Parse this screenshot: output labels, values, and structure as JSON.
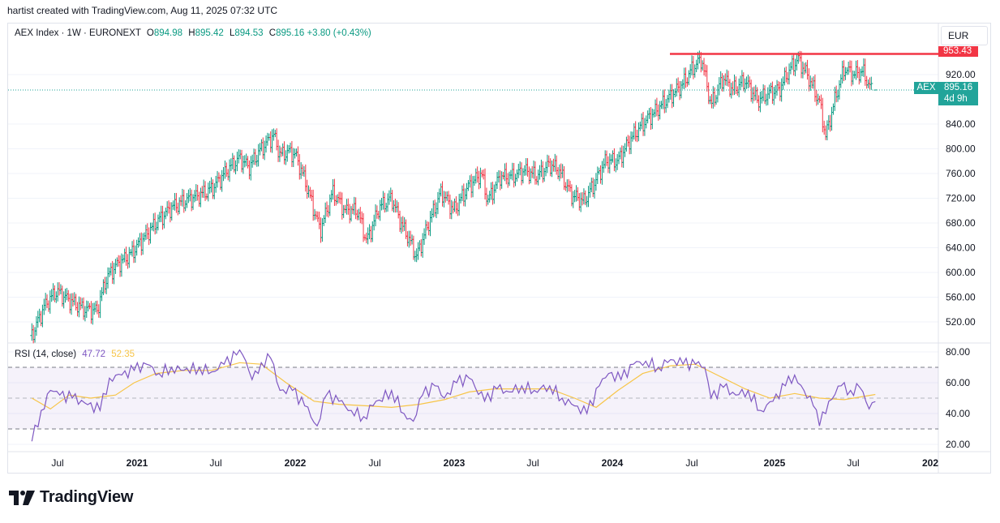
{
  "header": {
    "attribution": "hartist created with TradingView.com, Aug 11, 2025 07:32 UTC"
  },
  "legend": {
    "symbol": "AEX Index · 1W · EURONEXT",
    "open_label": "O",
    "open": "894.98",
    "high_label": "H",
    "high": "895.42",
    "low_label": "L",
    "low": "894.53",
    "close_label": "C",
    "close": "895.16",
    "change": "+3.80 (+0.43%)"
  },
  "rsi_legend": {
    "name": "RSI (14, close)",
    "rsi": "47.72",
    "ma": "52.35"
  },
  "currency_button": "EUR",
  "resistance_tag": "953.43",
  "price_tag": {
    "symbol": "AEX",
    "price": "895.16",
    "countdown": "4d 9h"
  },
  "brand": {
    "name": "TradingView",
    "logo_icon": "tradingview-logo-icon"
  },
  "colors": {
    "up": "#089981",
    "down": "#f23645",
    "rsi": "#7e57c2",
    "rsi_ma": "#f7c548",
    "resistance": "#f23645",
    "last_price": "#22a49a"
  },
  "chart_data": [
    {
      "type": "ohlc",
      "interval": "1W",
      "price_axis_ticks": [
        520,
        560,
        600,
        640,
        680,
        720,
        760,
        800,
        840,
        920
      ],
      "price_axis_tick_labels": [
        "520.00",
        "560.00",
        "600.00",
        "640.00",
        "680.00",
        "720.00",
        "760.00",
        "800.00",
        "840.00",
        "920.00"
      ],
      "time_axis_labels": [
        "Jul",
        "2021",
        "Jul",
        "2022",
        "Jul",
        "2023",
        "Jul",
        "2024",
        "Jul",
        "2025",
        "Jul",
        "202"
      ],
      "resistance_level": 953.43,
      "last_close": 895.16,
      "close_path": [
        [
          "2020-05-25",
          498
        ],
        [
          "2020-06-22",
          545
        ],
        [
          "2020-07-20",
          570
        ],
        [
          "2020-08-17",
          555
        ],
        [
          "2020-09-21",
          540
        ],
        [
          "2020-10-19",
          538
        ],
        [
          "2020-11-09",
          590
        ],
        [
          "2020-11-30",
          610
        ],
        [
          "2021-01-04",
          630
        ],
        [
          "2021-02-01",
          655
        ],
        [
          "2021-03-01",
          680
        ],
        [
          "2021-04-05",
          705
        ],
        [
          "2021-05-03",
          715
        ],
        [
          "2021-06-07",
          725
        ],
        [
          "2021-07-05",
          735
        ],
        [
          "2021-08-09",
          765
        ],
        [
          "2021-09-06",
          785
        ],
        [
          "2021-09-27",
          770
        ],
        [
          "2021-10-25",
          800
        ],
        [
          "2021-11-22",
          822
        ],
        [
          "2021-12-06",
          790
        ],
        [
          "2021-12-27",
          795
        ],
        [
          "2022-01-10",
          790
        ],
        [
          "2022-01-31",
          750
        ],
        [
          "2022-02-21",
          700
        ],
        [
          "2022-03-07",
          668
        ],
        [
          "2022-04-04",
          730
        ],
        [
          "2022-05-02",
          700
        ],
        [
          "2022-05-30",
          700
        ],
        [
          "2022-06-20",
          650
        ],
        [
          "2022-07-18",
          705
        ],
        [
          "2022-08-15",
          720
        ],
        [
          "2022-09-05",
          680
        ],
        [
          "2022-09-26",
          650
        ],
        [
          "2022-10-10",
          625
        ],
        [
          "2022-11-07",
          680
        ],
        [
          "2022-12-05",
          730
        ],
        [
          "2023-01-02",
          700
        ],
        [
          "2023-02-06",
          740
        ],
        [
          "2023-03-06",
          760
        ],
        [
          "2023-03-20",
          715
        ],
        [
          "2023-04-17",
          755
        ],
        [
          "2023-05-15",
          755
        ],
        [
          "2023-06-12",
          765
        ],
        [
          "2023-07-10",
          755
        ],
        [
          "2023-08-07",
          775
        ],
        [
          "2023-08-28",
          765
        ],
        [
          "2023-09-25",
          725
        ],
        [
          "2023-10-23",
          715
        ],
        [
          "2023-11-13",
          740
        ],
        [
          "2023-12-11",
          780
        ],
        [
          "2024-01-08",
          780
        ],
        [
          "2024-02-05",
          815
        ],
        [
          "2024-03-04",
          840
        ],
        [
          "2024-04-01",
          860
        ],
        [
          "2024-05-06",
          885
        ],
        [
          "2024-06-03",
          905
        ],
        [
          "2024-06-24",
          930
        ],
        [
          "2024-07-15",
          945
        ],
        [
          "2024-08-05",
          870
        ],
        [
          "2024-09-02",
          915
        ],
        [
          "2024-09-23",
          895
        ],
        [
          "2024-10-21",
          910
        ],
        [
          "2024-11-18",
          878
        ],
        [
          "2024-12-16",
          890
        ],
        [
          "2025-01-06",
          895
        ],
        [
          "2025-01-27",
          925
        ],
        [
          "2025-02-17",
          945
        ],
        [
          "2025-03-10",
          920
        ],
        [
          "2025-04-07",
          875
        ],
        [
          "2025-04-21",
          820
        ],
        [
          "2025-05-12",
          880
        ],
        [
          "2025-06-02",
          930
        ],
        [
          "2025-06-23",
          920
        ],
        [
          "2025-07-14",
          925
        ],
        [
          "2025-08-04",
          891
        ],
        [
          "2025-08-11",
          895.16
        ]
      ],
      "ohlc": [
        {
          "date": "2025-08-11",
          "open": 894.98,
          "high": 895.42,
          "low": 894.53,
          "close": 895.16
        }
      ]
    },
    {
      "type": "line",
      "name": "RSI (14, close)",
      "y_axis_ticks": [
        20,
        40,
        60,
        80
      ],
      "y_axis_tick_labels": [
        "20.00",
        "40.00",
        "60.00",
        "80.00"
      ],
      "bands": {
        "upper": 70,
        "middle": 50,
        "lower": 30
      },
      "series": [
        {
          "name": "RSI",
          "points": [
            [
              "2020-05-25",
              22
            ],
            [
              "2020-06-15",
              42
            ],
            [
              "2020-07-06",
              55
            ],
            [
              "2020-07-27",
              52
            ],
            [
              "2020-08-24",
              50
            ],
            [
              "2020-09-21",
              47
            ],
            [
              "2020-10-26",
              42
            ],
            [
              "2020-11-16",
              63
            ],
            [
              "2020-12-14",
              65
            ],
            [
              "2021-01-11",
              68
            ],
            [
              "2021-02-08",
              72
            ],
            [
              "2021-03-08",
              66
            ],
            [
              "2021-04-05",
              70
            ],
            [
              "2021-05-03",
              68
            ],
            [
              "2021-06-07",
              70
            ],
            [
              "2021-07-05",
              67
            ],
            [
              "2021-08-02",
              72
            ],
            [
              "2021-08-30",
              78
            ],
            [
              "2021-09-13",
              78
            ],
            [
              "2021-10-04",
              62
            ],
            [
              "2021-10-25",
              73
            ],
            [
              "2021-11-15",
              76
            ],
            [
              "2021-12-06",
              55
            ],
            [
              "2022-01-03",
              55
            ],
            [
              "2022-01-31",
              45
            ],
            [
              "2022-02-28",
              32
            ],
            [
              "2022-03-21",
              52
            ],
            [
              "2022-04-18",
              48
            ],
            [
              "2022-05-16",
              42
            ],
            [
              "2022-06-13",
              38
            ],
            [
              "2022-07-04",
              45
            ],
            [
              "2022-08-15",
              55
            ],
            [
              "2022-09-12",
              40
            ],
            [
              "2022-10-03",
              35
            ],
            [
              "2022-10-24",
              52
            ],
            [
              "2022-11-21",
              58
            ],
            [
              "2022-12-12",
              50
            ],
            [
              "2023-01-09",
              60
            ],
            [
              "2023-02-06",
              63
            ],
            [
              "2023-03-13",
              48
            ],
            [
              "2023-04-10",
              56
            ],
            [
              "2023-05-08",
              54
            ],
            [
              "2023-06-05",
              58
            ],
            [
              "2023-07-03",
              55
            ],
            [
              "2023-08-07",
              58
            ],
            [
              "2023-09-04",
              50
            ],
            [
              "2023-10-02",
              45
            ],
            [
              "2023-10-30",
              40
            ],
            [
              "2023-11-27",
              58
            ],
            [
              "2023-12-18",
              66
            ],
            [
              "2024-01-15",
              62
            ],
            [
              "2024-02-12",
              72
            ],
            [
              "2024-03-11",
              74
            ],
            [
              "2024-04-08",
              70
            ],
            [
              "2024-05-06",
              75
            ],
            [
              "2024-06-03",
              72
            ],
            [
              "2024-07-01",
              72
            ],
            [
              "2024-07-22",
              70
            ],
            [
              "2024-08-05",
              50
            ],
            [
              "2024-09-02",
              57
            ],
            [
              "2024-09-30",
              52
            ],
            [
              "2024-10-28",
              55
            ],
            [
              "2024-11-25",
              42
            ],
            [
              "2024-12-23",
              48
            ],
            [
              "2025-01-20",
              58
            ],
            [
              "2025-02-10",
              65
            ],
            [
              "2025-03-03",
              55
            ],
            [
              "2025-03-24",
              45
            ],
            [
              "2025-04-07",
              32
            ],
            [
              "2025-04-28",
              48
            ],
            [
              "2025-05-26",
              58
            ],
            [
              "2025-06-16",
              55
            ],
            [
              "2025-07-07",
              57
            ],
            [
              "2025-07-28",
              43
            ],
            [
              "2025-08-11",
              47.72
            ]
          ]
        },
        {
          "name": "RSI-based MA",
          "points": [
            [
              "2020-05-25",
              50
            ],
            [
              "2020-07-06",
              43
            ],
            [
              "2020-08-17",
              52
            ],
            [
              "2020-10-05",
              50
            ],
            [
              "2020-11-30",
              52
            ],
            [
              "2021-01-11",
              60
            ],
            [
              "2021-03-01",
              66
            ],
            [
              "2021-05-03",
              68
            ],
            [
              "2021-07-05",
              68
            ],
            [
              "2021-09-06",
              73
            ],
            [
              "2021-10-25",
              72
            ],
            [
              "2021-12-20",
              60
            ],
            [
              "2022-02-21",
              48
            ],
            [
              "2022-04-18",
              46
            ],
            [
              "2022-06-20",
              45
            ],
            [
              "2022-08-15",
              44
            ],
            [
              "2022-10-17",
              46
            ],
            [
              "2022-12-12",
              49
            ],
            [
              "2023-02-06",
              54
            ],
            [
              "2023-04-03",
              56
            ],
            [
              "2023-06-05",
              56
            ],
            [
              "2023-08-07",
              56
            ],
            [
              "2023-10-02",
              50
            ],
            [
              "2023-11-20",
              44
            ],
            [
              "2024-01-08",
              55
            ],
            [
              "2024-03-04",
              66
            ],
            [
              "2024-05-06",
              71
            ],
            [
              "2024-07-01",
              72
            ],
            [
              "2024-08-26",
              64
            ],
            [
              "2024-10-21",
              56
            ],
            [
              "2024-12-16",
              50
            ],
            [
              "2025-02-10",
              53
            ],
            [
              "2025-04-07",
              50
            ],
            [
              "2025-06-02",
              49
            ],
            [
              "2025-08-11",
              52.35
            ]
          ]
        }
      ]
    }
  ]
}
